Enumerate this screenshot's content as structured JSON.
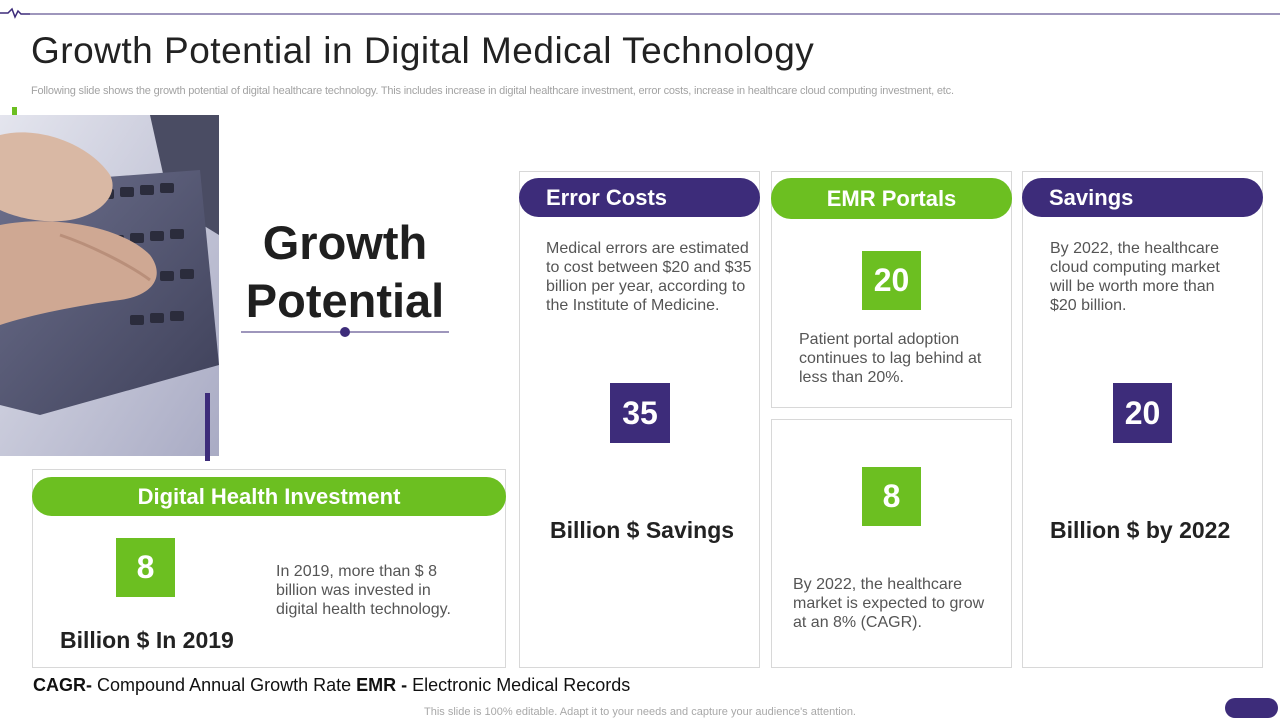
{
  "header": {
    "title": "Growth Potential in Digital Medical Technology",
    "subtitle": "Following slide shows the growth potential of digital healthcare technology. This includes increase in digital healthcare investment, error costs, increase in healthcare cloud computing investment, etc."
  },
  "colors": {
    "purple": "#3d2c7a",
    "green": "#6cbf21"
  },
  "hero": {
    "title_line1": "Growth",
    "title_line2": "Potential",
    "image": "laptop-typing-photo"
  },
  "investment": {
    "heading": "Digital Health Investment",
    "number": "8",
    "label": "Billion $ In 2019",
    "text": "In 2019, more than $ 8 billion was invested in digital health technology."
  },
  "error_costs": {
    "heading": "Error Costs",
    "text": "Medical errors are estimated to cost between $20 and $35 billion per year, according to the Institute  of Medicine.",
    "number": "35",
    "label": "Billion $ Savings"
  },
  "emr": {
    "heading": "EMR Portals",
    "number": "20",
    "text": "Patient portal adoption continues to lag behind at less than 20%."
  },
  "market": {
    "number": "8",
    "text": "By 2022, the healthcare market is expected to grow at an 8% (CAGR)."
  },
  "savings": {
    "heading": "Savings",
    "text": "By 2022, the healthcare cloud computing market will be worth more than $20 billion.",
    "number": "20",
    "label": "Billion $ by 2022"
  },
  "footnote": {
    "cagr_abbr": "CAGR-",
    "cagr_def": " Compound Annual Growth Rate ",
    "emr_abbr": "EMR -",
    "emr_def": " Electronic Medical Records"
  },
  "bottom_note": "This slide is 100% editable. Adapt it to your needs and capture your audience's attention."
}
